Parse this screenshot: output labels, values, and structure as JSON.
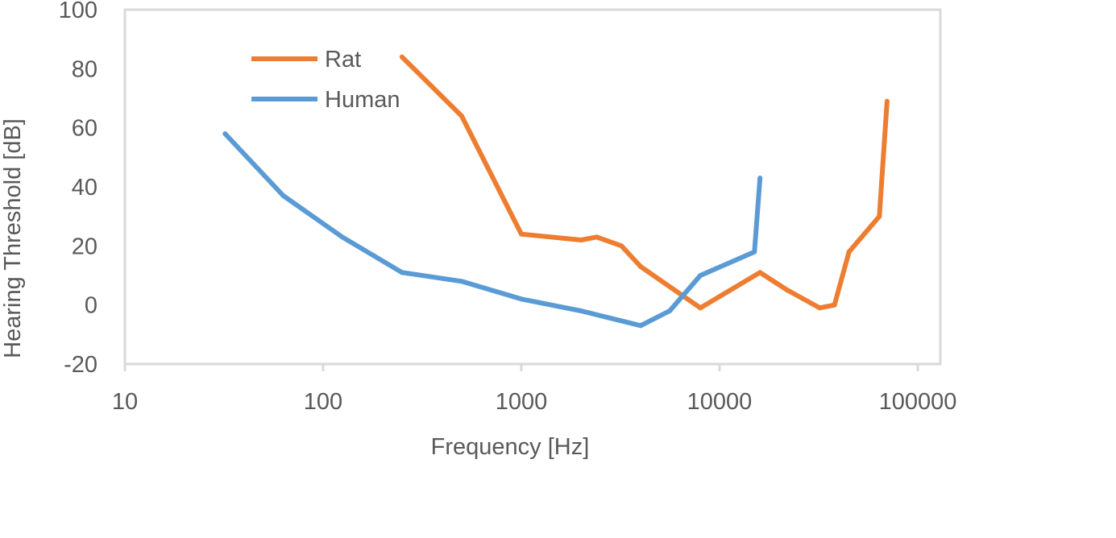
{
  "chart_data": {
    "type": "line",
    "xscale": "log",
    "xlabel": "Frequency [Hz]",
    "ylabel": "Hearing Threshold [dB]",
    "xlim": [
      10,
      100000
    ],
    "ylim": [
      -20,
      100
    ],
    "x_ticks": [
      10,
      100,
      1000,
      10000,
      100000
    ],
    "x_tick_labels": [
      "10",
      "100",
      "1000",
      "10000",
      "100000"
    ],
    "y_ticks": [
      -20,
      0,
      20,
      40,
      60,
      80,
      100
    ],
    "y_tick_labels": [
      "-20",
      "0",
      "20",
      "40",
      "60",
      "80",
      "100"
    ],
    "grid": false,
    "legend_position": "top-left",
    "series": [
      {
        "name": "Rat",
        "color": "#ED7D31",
        "x": [
          250,
          500,
          1000,
          2000,
          2400,
          3200,
          4000,
          8000,
          16000,
          22000,
          32000,
          38000,
          45000,
          64000,
          70000
        ],
        "y": [
          84,
          64,
          24,
          22,
          23,
          20,
          13,
          -1,
          11,
          5,
          -1,
          0,
          18,
          30,
          69
        ]
      },
      {
        "name": "Human",
        "color": "#5B9BD5",
        "x": [
          32,
          63,
          125,
          250,
          500,
          1000,
          2000,
          4000,
          5600,
          8000,
          15000,
          16000
        ],
        "y": [
          58,
          37,
          23,
          11,
          8,
          2,
          -2,
          -7,
          -2,
          10,
          18,
          43
        ]
      }
    ]
  }
}
